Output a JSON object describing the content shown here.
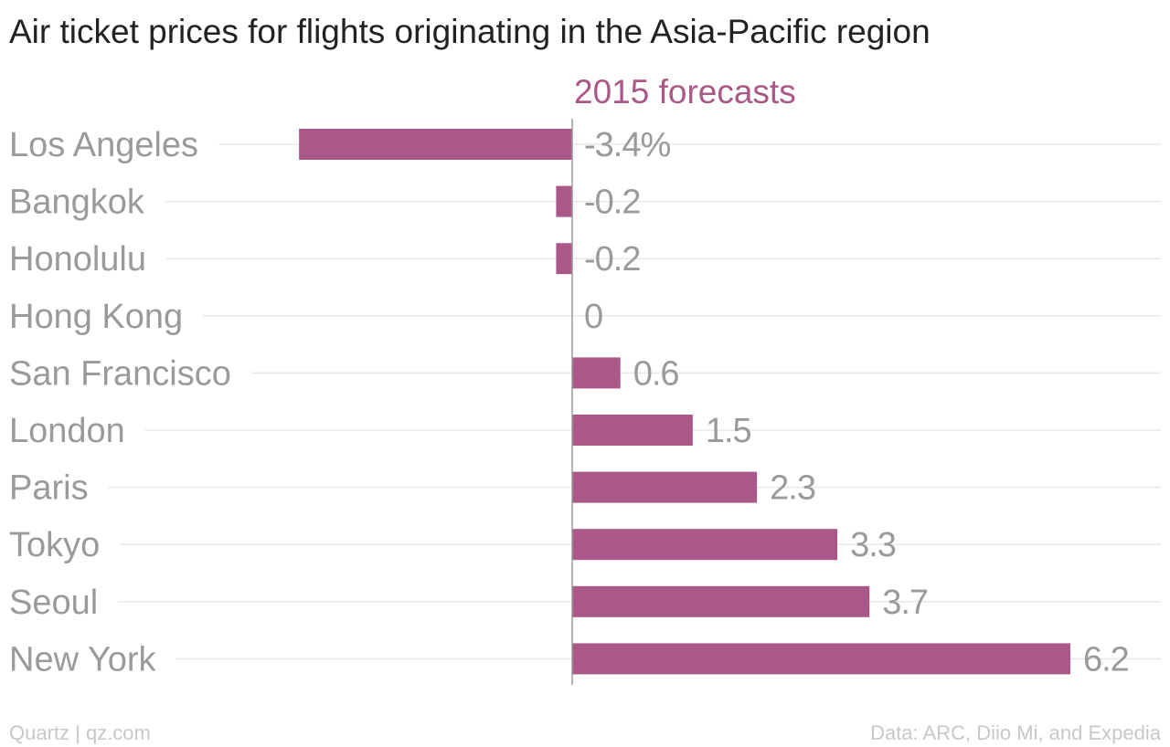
{
  "title": "Air ticket prices for flights originating in the Asia-Pacific region",
  "footer": {
    "credit": "Quartz | qz.com",
    "source": "Data: ARC, Diio Mi, and Expedia"
  },
  "colors": {
    "bar": "#a95887",
    "series_label": "#a95887",
    "category_label": "#9a9a9a",
    "value_label": "#9a9a9a",
    "gridline": "#e8e8e8",
    "zero_line": "#999999"
  },
  "chart_data": {
    "type": "bar",
    "orientation": "horizontal",
    "categories": [
      "Los Angeles",
      "Bangkok",
      "Honolulu",
      "Hong Kong",
      "San Francisco",
      "London",
      "Paris",
      "Tokyo",
      "Seoul",
      "New York"
    ],
    "series": [
      {
        "name": "2015 forecasts",
        "values": [
          -3.4,
          -0.2,
          -0.2,
          0,
          0.6,
          1.5,
          2.3,
          3.3,
          3.7,
          6.2
        ]
      }
    ],
    "value_labels": [
      "-3.4%",
      "-0.2",
      "-0.2",
      "0",
      "0.6",
      "1.5",
      "2.3",
      "3.3",
      "3.7",
      "6.2"
    ],
    "xlim": [
      -3.4,
      6.2
    ],
    "grid": true
  }
}
